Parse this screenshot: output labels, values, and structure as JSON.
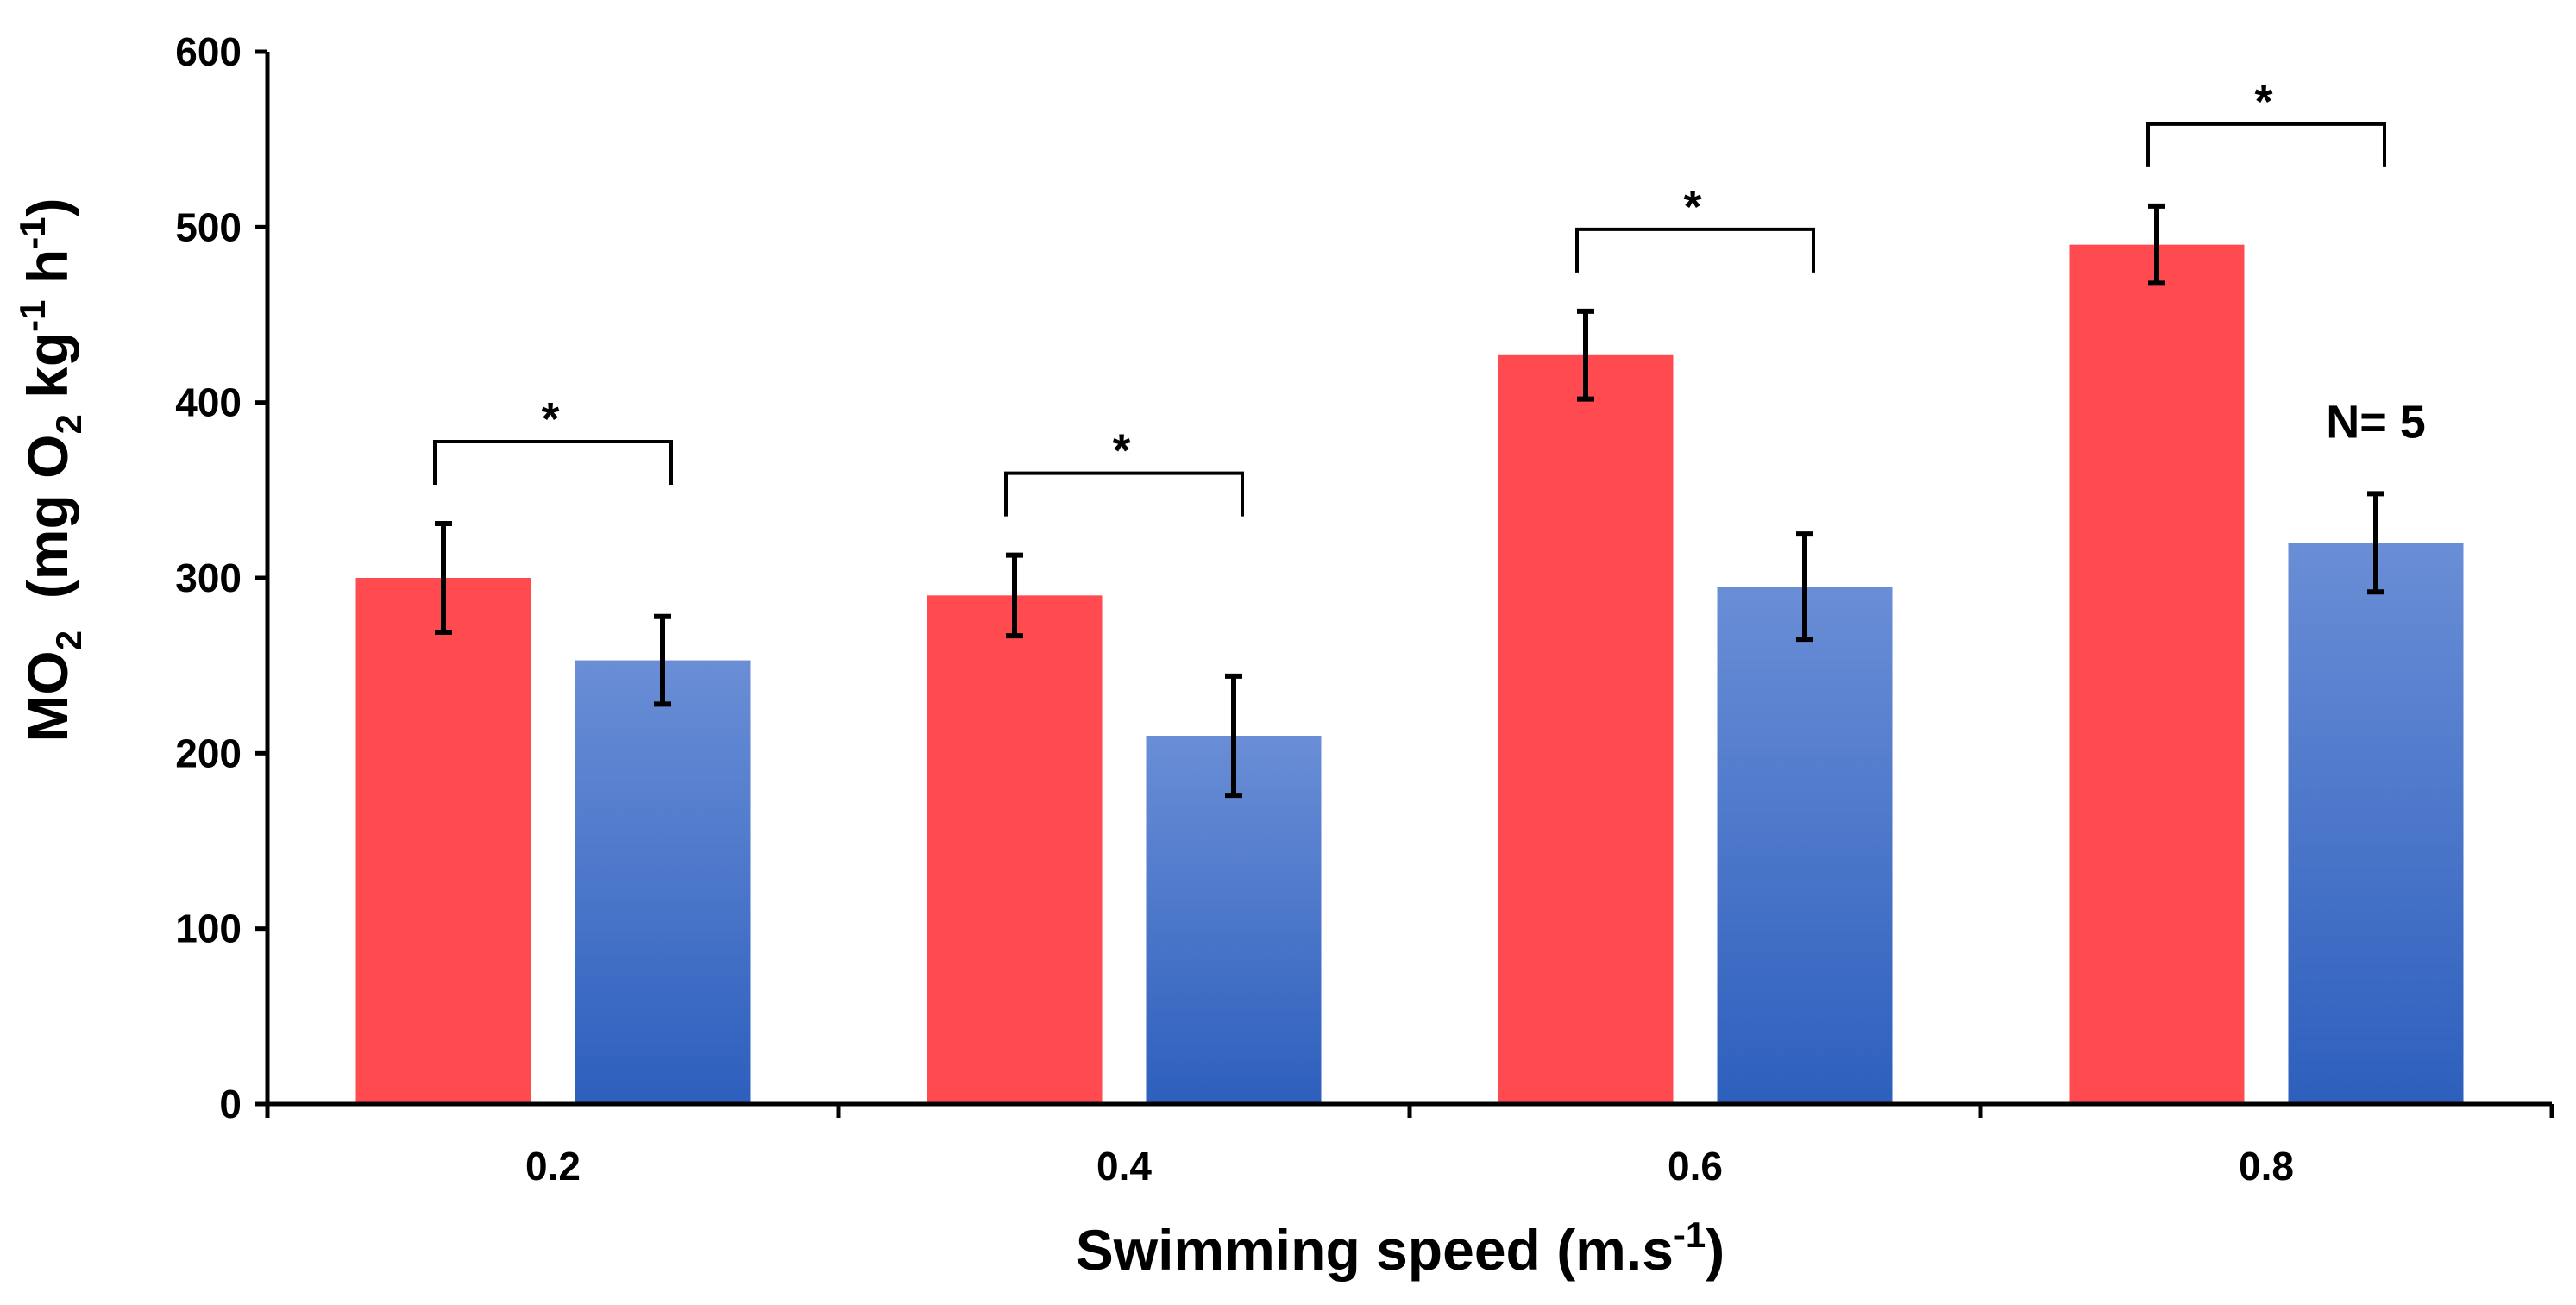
{
  "chart_data": {
    "type": "bar",
    "title": "",
    "xlabel": {
      "main": "Swimming speed (m.s",
      "sup": "-1",
      "tail": ")"
    },
    "ylabel": {
      "parts": [
        "MO",
        "2",
        "  (mg O",
        "2",
        " kg",
        "-1",
        " h",
        "-1",
        ")"
      ]
    },
    "categories": [
      "0.2",
      "0.4",
      "0.6",
      "0.8"
    ],
    "ylim": [
      0,
      600
    ],
    "yticks": [
      "0",
      "100",
      "200",
      "300",
      "400",
      "500",
      "600"
    ],
    "grid": false,
    "series": [
      {
        "values": [
          300,
          290,
          427,
          490
        ],
        "errors": [
          31,
          23,
          25,
          22
        ],
        "color": "#ff4b4f"
      },
      {
        "values": [
          253,
          210,
          295,
          320
        ],
        "errors": [
          25,
          34,
          30,
          28
        ],
        "color_top": "#6a8ed6",
        "color_bottom": "#2d5fbd"
      }
    ],
    "significance": [
      "*",
      "*",
      "*",
      "*"
    ],
    "annotations": [
      {
        "text": "N= 5"
      }
    ]
  }
}
